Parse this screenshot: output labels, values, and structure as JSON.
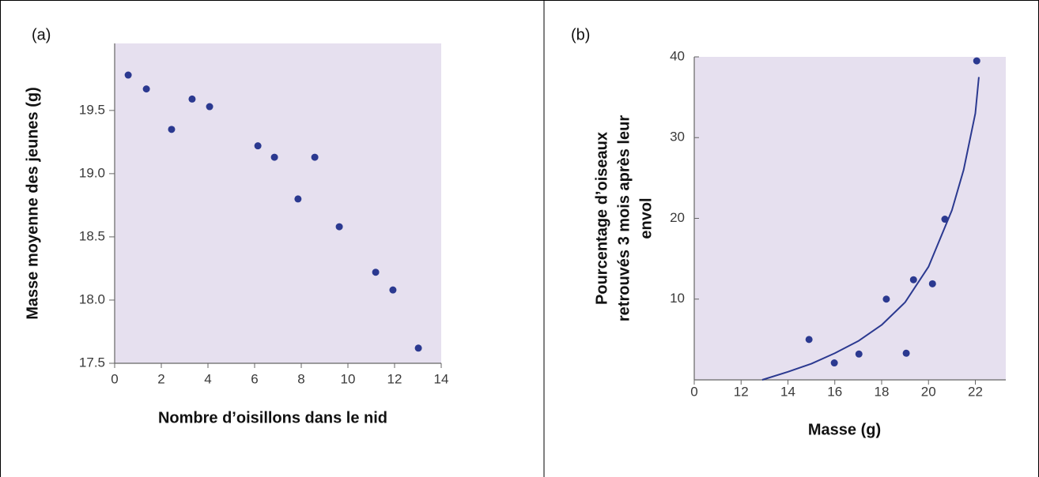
{
  "chart_data": [
    {
      "type": "scatter",
      "panel_label": "(a)",
      "xlabel": "Nombre d’oisillons dans le nid",
      "ylabel": [
        "Masse moyenne des jeunes (g)"
      ],
      "xlim": [
        0,
        14
      ],
      "xticks": [
        0,
        2,
        4,
        6,
        8,
        10,
        12,
        14
      ],
      "ylim": [
        17.5,
        20.03
      ],
      "yticks": [
        17.5,
        {
          "value": 18,
          "label": "18.0"
        },
        18.5,
        {
          "value": 19,
          "label": "19.0"
        },
        19.5
      ],
      "background": "#e6e0ef",
      "series": [
        {
          "mode": "points",
          "color": "#2b3990",
          "x": [
            0.58,
            1.36,
            2.44,
            3.32,
            4.07,
            6.14,
            6.85,
            8.58,
            7.86,
            9.63,
            11.19,
            11.93,
            13.02
          ],
          "values": [
            19.78,
            19.67,
            19.35,
            19.59,
            19.53,
            19.22,
            19.13,
            19.13,
            18.8,
            18.58,
            18.22,
            18.08,
            17.62
          ]
        }
      ]
    },
    {
      "type": "scatter",
      "panel_label": "(b)",
      "xlabel": "Masse (g)",
      "ylabel": [
        "Pourcentage d’oiseaux",
        "retrouvés 3 mois après leur",
        "envol"
      ],
      "xlim": [
        10,
        23.3
      ],
      "xticks": [
        {
          "value": 10,
          "label": "0"
        },
        12,
        14,
        16,
        18,
        20,
        22
      ],
      "ylim": [
        0,
        40
      ],
      "yticks": [
        10,
        20,
        30,
        40
      ],
      "background": "#e6e0ef",
      "series": [
        {
          "mode": "points",
          "color": "#2b3990",
          "x": [
            14.9,
            15.98,
            17.03,
            18.2,
            19.05,
            19.36,
            20.17,
            20.7,
            22.06
          ],
          "values": [
            5.0,
            2.1,
            3.2,
            10.0,
            3.3,
            12.4,
            11.9,
            19.9,
            39.5
          ]
        },
        {
          "mode": "line",
          "color": "#2b3990",
          "x": [
            12.9,
            14,
            15,
            16,
            17,
            18,
            19,
            20,
            21,
            21.5,
            22,
            22.15
          ],
          "values": [
            0,
            1.0,
            2.0,
            3.3,
            4.8,
            6.8,
            9.6,
            14.0,
            21,
            26,
            33,
            37.5
          ]
        }
      ]
    }
  ]
}
